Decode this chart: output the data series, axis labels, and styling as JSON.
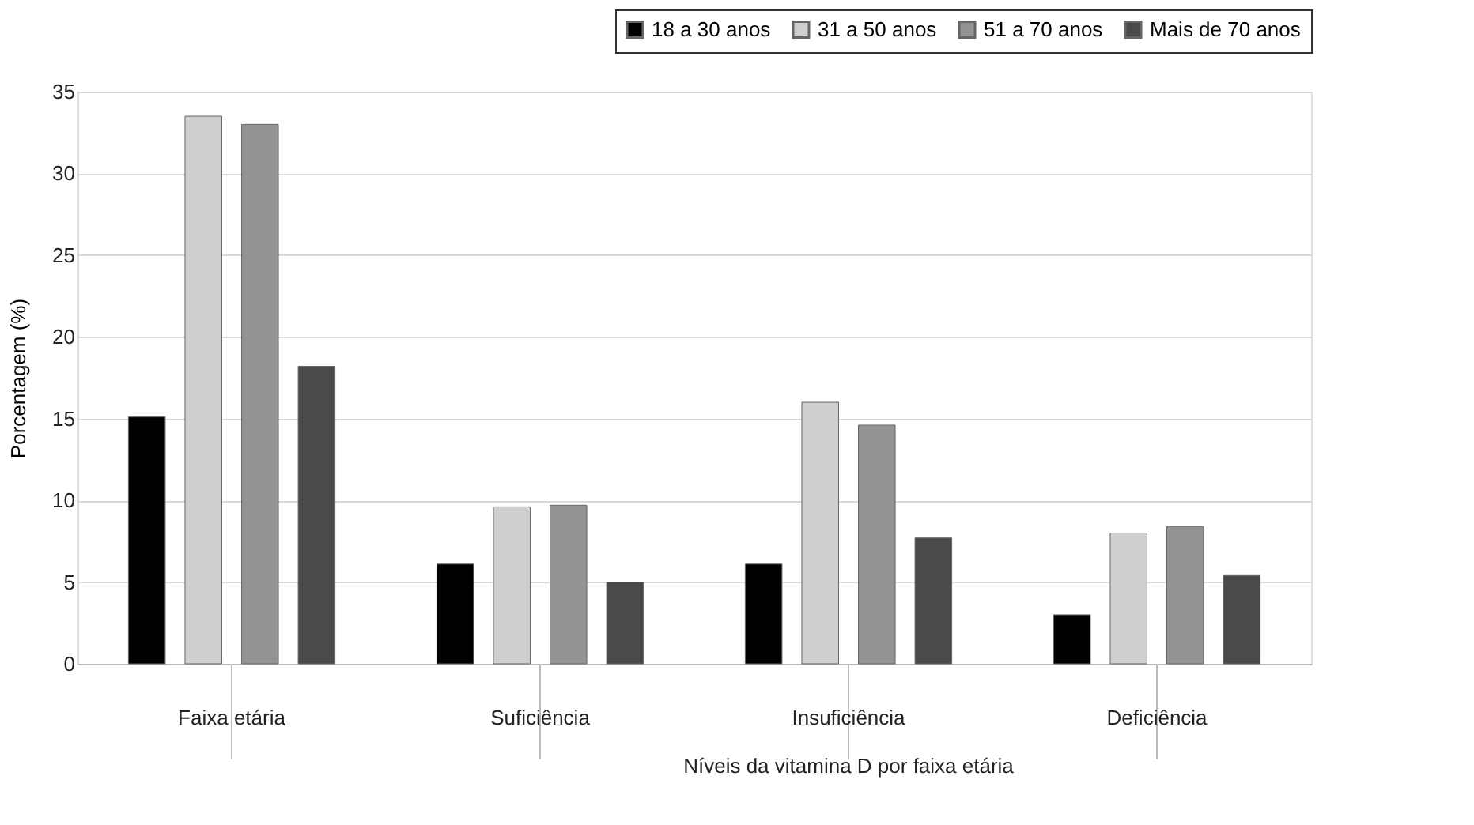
{
  "chart_data": {
    "type": "bar",
    "categories": [
      "Faixa etária",
      "Suficiência",
      "Insuficiência",
      "Deficiência"
    ],
    "series": [
      {
        "name": "18 a 30 anos",
        "color": "#000000",
        "values": [
          15.1,
          6.1,
          6.1,
          3.0
        ]
      },
      {
        "name": "31 a 50 anos",
        "color": "#cfcfcf",
        "values": [
          33.5,
          9.6,
          16.0,
          8.0
        ]
      },
      {
        "name": "51 a 70 anos",
        "color": "#939393",
        "values": [
          33.0,
          9.7,
          14.6,
          8.4
        ]
      },
      {
        "name": "Mais de 70 anos",
        "color": "#4a4a4a",
        "values": [
          18.2,
          5.0,
          7.7,
          5.4
        ]
      }
    ],
    "ylabel": "Porcentagem (%)",
    "ylim": [
      0,
      35
    ],
    "yticks": [
      0,
      5,
      10,
      15,
      20,
      25,
      30,
      35
    ],
    "annotations": [
      "Níveis da vitamina D por faixa etária"
    ],
    "grid": "y",
    "legend": "top right"
  }
}
